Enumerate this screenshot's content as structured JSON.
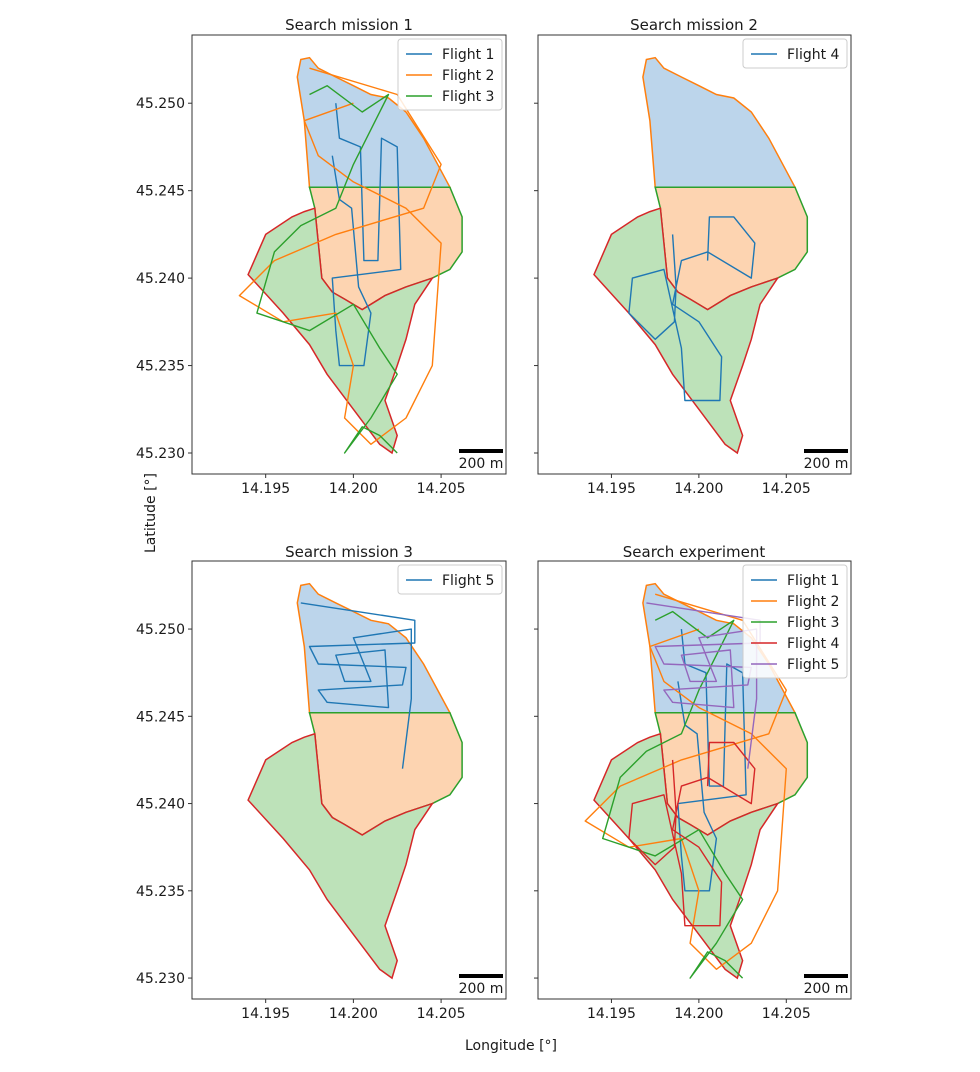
{
  "figure": {
    "xlabel": "Longitude [°]",
    "ylabel": "Latitude [°]"
  },
  "colors": {
    "flight_1": "#1f77b4",
    "flight_2": "#ff7f0e",
    "flight_3": "#2ca02c",
    "flight_4": "#d62728",
    "flight_5": "#9467bd",
    "zone_north_fill": "#b8d3ea",
    "zone_middle_fill": "#fdd2ad",
    "zone_south_fill": "#b9e0b5"
  },
  "chart_data": [
    {
      "type": "line",
      "title": "Search mission 1",
      "xlim": [
        14.1908,
        14.2087
      ],
      "ylim": [
        45.2288,
        45.2539
      ],
      "xticks": [
        "14.195",
        "14.200",
        "14.205"
      ],
      "yticks": [
        "45.230",
        "45.235",
        "45.240",
        "45.245",
        "45.250"
      ],
      "legend_position": "top-right",
      "series": [
        {
          "name": "Flight 1",
          "color": "#1f77b4",
          "x": [
            14.199,
            14.1992,
            14.2004,
            14.2006,
            14.2014,
            14.2016,
            14.2025,
            14.2027,
            14.1988,
            14.199,
            14.1992,
            14.2006,
            14.201,
            14.2003,
            14.1999,
            14.1992,
            14.1988
          ],
          "y": [
            45.25,
            45.248,
            45.2475,
            45.241,
            45.241,
            45.248,
            45.2475,
            45.2405,
            45.24,
            45.237,
            45.235,
            45.235,
            45.238,
            45.2395,
            45.244,
            45.2445,
            45.247
          ]
        },
        {
          "name": "Flight 2",
          "color": "#ff7f0e",
          "x": [
            14.1975,
            14.2025,
            14.205,
            14.204,
            14.199,
            14.1955,
            14.1935,
            14.196,
            14.199,
            14.2,
            14.1995,
            14.201,
            14.203,
            14.2045,
            14.205,
            14.203,
            14.2,
            14.198,
            14.1972,
            14.2
          ],
          "y": [
            45.252,
            45.2505,
            45.2465,
            45.244,
            45.2425,
            45.241,
            45.239,
            45.2375,
            45.238,
            45.235,
            45.232,
            45.2305,
            45.232,
            45.235,
            45.242,
            45.244,
            45.2455,
            45.247,
            45.249,
            45.25
          ]
        },
        {
          "name": "Flight 3",
          "color": "#2ca02c",
          "x": [
            14.1975,
            14.1985,
            14.2005,
            14.202,
            14.2,
            14.199,
            14.197,
            14.1955,
            14.1945,
            14.1975,
            14.2,
            14.2015,
            14.2025,
            14.201,
            14.1995,
            14.2005,
            14.2015,
            14.2025
          ],
          "y": [
            45.2505,
            45.251,
            45.2495,
            45.2505,
            45.2465,
            45.244,
            45.243,
            45.2415,
            45.238,
            45.237,
            45.2385,
            45.236,
            45.2345,
            45.232,
            45.23,
            45.2315,
            45.231,
            45.23
          ]
        }
      ]
    },
    {
      "type": "line",
      "title": "Search mission 2",
      "xlim": [
        14.1908,
        14.2087
      ],
      "ylim": [
        45.2288,
        45.2539
      ],
      "xticks": [
        "14.195",
        "14.200",
        "14.205"
      ],
      "yticks": [
        "45.230",
        "45.235",
        "45.240",
        "45.245",
        "45.250"
      ],
      "legend_position": "top-right",
      "series": [
        {
          "name": "Flight 4",
          "color": "#1f77b4",
          "x": [
            14.1985,
            14.1987,
            14.1986,
            14.1975,
            14.196,
            14.1962,
            14.198,
            14.199,
            14.1992,
            14.2012,
            14.2013,
            14.2,
            14.1985,
            14.199,
            14.2005,
            14.203,
            14.2032,
            14.202,
            14.2006,
            14.2005
          ],
          "y": [
            45.2425,
            45.2395,
            45.2375,
            45.2365,
            45.238,
            45.24,
            45.2405,
            45.236,
            45.233,
            45.233,
            45.2355,
            45.2375,
            45.2385,
            45.241,
            45.2415,
            45.24,
            45.242,
            45.2435,
            45.2435,
            45.241
          ]
        }
      ]
    },
    {
      "type": "line",
      "title": "Search mission 3",
      "xlim": [
        14.1908,
        14.2087
      ],
      "ylim": [
        45.2288,
        45.2539
      ],
      "xticks": [
        "14.195",
        "14.200",
        "14.205"
      ],
      "yticks": [
        "45.230",
        "45.235",
        "45.240",
        "45.245",
        "45.250"
      ],
      "legend_position": "top-right",
      "series": [
        {
          "name": "Flight 5",
          "color": "#1f77b4",
          "x": [
            14.197,
            14.2035,
            14.2035,
            14.1975,
            14.198,
            14.203,
            14.2028,
            14.198,
            14.1985,
            14.202,
            14.2018,
            14.199,
            14.1995,
            14.201,
            14.2,
            14.2033,
            14.2033,
            14.2028
          ],
          "y": [
            45.2515,
            45.2505,
            45.2492,
            45.249,
            45.248,
            45.2478,
            45.2468,
            45.2465,
            45.2458,
            45.2455,
            45.2488,
            45.2485,
            45.247,
            45.247,
            45.2495,
            45.25,
            45.246,
            45.242
          ]
        }
      ]
    },
    {
      "type": "line",
      "title": "Search experiment",
      "xlim": [
        14.1908,
        14.2087
      ],
      "ylim": [
        45.2288,
        45.2539
      ],
      "xticks": [
        "14.195",
        "14.200",
        "14.205"
      ],
      "yticks": [
        "45.230",
        "45.235",
        "45.240",
        "45.245",
        "45.250"
      ],
      "legend_position": "top-right",
      "series": [
        {
          "name": "Flight 1",
          "color": "#1f77b4",
          "x": [
            14.199,
            14.1992,
            14.2004,
            14.2006,
            14.2014,
            14.2016,
            14.2025,
            14.2027,
            14.1988,
            14.199,
            14.1992,
            14.2006,
            14.201,
            14.2003,
            14.1999,
            14.1992,
            14.1988
          ],
          "y": [
            45.25,
            45.248,
            45.2475,
            45.241,
            45.241,
            45.248,
            45.2475,
            45.2405,
            45.24,
            45.237,
            45.235,
            45.235,
            45.238,
            45.2395,
            45.244,
            45.2445,
            45.247
          ]
        },
        {
          "name": "Flight 2",
          "color": "#ff7f0e",
          "x": [
            14.1975,
            14.2025,
            14.205,
            14.204,
            14.199,
            14.1955,
            14.1935,
            14.196,
            14.199,
            14.2,
            14.1995,
            14.201,
            14.203,
            14.2045,
            14.205,
            14.203,
            14.2,
            14.198,
            14.1972,
            14.2
          ],
          "y": [
            45.252,
            45.2505,
            45.2465,
            45.244,
            45.2425,
            45.241,
            45.239,
            45.2375,
            45.238,
            45.235,
            45.232,
            45.2305,
            45.232,
            45.235,
            45.242,
            45.244,
            45.2455,
            45.247,
            45.249,
            45.25
          ]
        },
        {
          "name": "Flight 3",
          "color": "#2ca02c",
          "x": [
            14.1975,
            14.1985,
            14.2005,
            14.202,
            14.2,
            14.199,
            14.197,
            14.1955,
            14.1945,
            14.1975,
            14.2,
            14.2015,
            14.2025,
            14.201,
            14.1995,
            14.2005,
            14.2015,
            14.2025
          ],
          "y": [
            45.2505,
            45.251,
            45.2495,
            45.2505,
            45.2465,
            45.244,
            45.243,
            45.2415,
            45.238,
            45.237,
            45.2385,
            45.236,
            45.2345,
            45.232,
            45.23,
            45.2315,
            45.231,
            45.23
          ]
        },
        {
          "name": "Flight 4",
          "color": "#d62728",
          "x": [
            14.1985,
            14.1987,
            14.1986,
            14.1975,
            14.196,
            14.1962,
            14.198,
            14.199,
            14.1992,
            14.2012,
            14.2013,
            14.2,
            14.1985,
            14.199,
            14.2005,
            14.203,
            14.2032,
            14.202,
            14.2006,
            14.2005
          ],
          "y": [
            45.2425,
            45.2395,
            45.2375,
            45.2365,
            45.238,
            45.24,
            45.2405,
            45.236,
            45.233,
            45.233,
            45.2355,
            45.2375,
            45.2385,
            45.241,
            45.2415,
            45.24,
            45.242,
            45.2435,
            45.2435,
            45.241
          ]
        },
        {
          "name": "Flight 5",
          "color": "#9467bd",
          "x": [
            14.197,
            14.2035,
            14.2035,
            14.1975,
            14.198,
            14.203,
            14.2028,
            14.198,
            14.1985,
            14.202,
            14.2018,
            14.199,
            14.1995,
            14.201,
            14.2,
            14.2033,
            14.2033,
            14.2028
          ],
          "y": [
            45.2515,
            45.2505,
            45.2492,
            45.249,
            45.248,
            45.2478,
            45.2468,
            45.2465,
            45.2458,
            45.2455,
            45.2488,
            45.2485,
            45.247,
            45.247,
            45.2495,
            45.25,
            45.246,
            45.242
          ]
        }
      ]
    }
  ],
  "areas": {
    "north": {
      "edge_color": "#ff7f0e",
      "x": [
        14.197,
        14.1975,
        14.198,
        14.199,
        14.2,
        14.201,
        14.202,
        14.203,
        14.204,
        14.2055,
        14.1975,
        14.1972,
        14.1968
      ],
      "y": [
        45.2525,
        45.2526,
        45.252,
        45.2515,
        45.251,
        45.2505,
        45.2503,
        45.2495,
        45.248,
        45.2452,
        45.2452,
        45.249,
        45.2515
      ]
    },
    "middle": {
      "edge_color": "#2ca02c",
      "x": [
        14.1975,
        14.2055,
        14.2062,
        14.2062,
        14.2055,
        14.2045,
        14.203,
        14.2018,
        14.2005,
        14.1995,
        14.1988,
        14.1982,
        14.198,
        14.1978
      ],
      "y": [
        45.2452,
        45.2452,
        45.2435,
        45.2415,
        45.2405,
        45.24,
        45.2395,
        45.239,
        45.2382,
        45.2388,
        45.2392,
        45.24,
        45.242,
        45.244
      ]
    },
    "south": {
      "edge_color": "#d62728",
      "x": [
        14.1978,
        14.198,
        14.1982,
        14.1988,
        14.1995,
        14.2005,
        14.2018,
        14.203,
        14.2045,
        14.2035,
        14.203,
        14.2025,
        14.2018,
        14.2025,
        14.2022,
        14.2015,
        14.2,
        14.1985,
        14.1975,
        14.196,
        14.194,
        14.195,
        14.1965,
        14.1972
      ],
      "y": [
        45.244,
        45.242,
        45.24,
        45.2392,
        45.2388,
        45.2382,
        45.239,
        45.2395,
        45.24,
        45.2385,
        45.2365,
        45.235,
        45.233,
        45.231,
        45.23,
        45.2305,
        45.2325,
        45.2345,
        45.2362,
        45.238,
        45.2402,
        45.2425,
        45.2435,
        45.2438
      ]
    }
  },
  "scale_bar": {
    "label": "200 m"
  }
}
